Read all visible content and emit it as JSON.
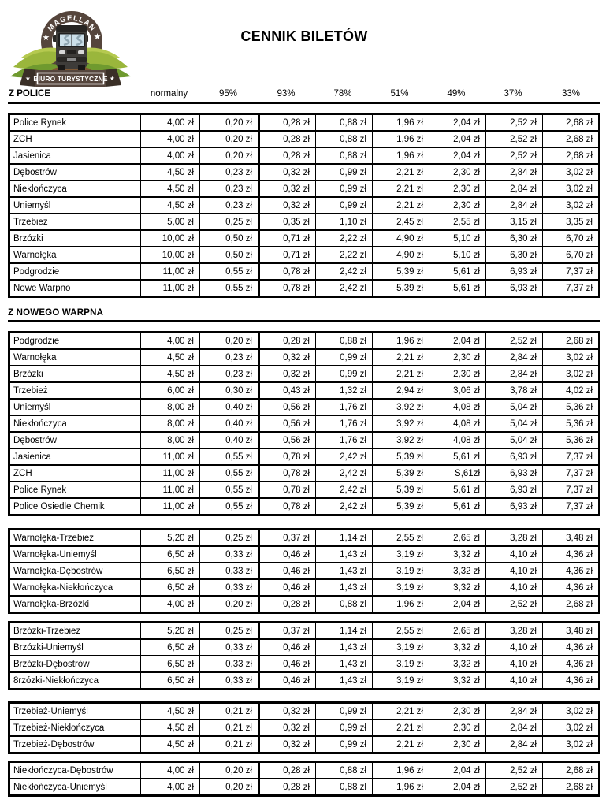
{
  "title": "CENNIK BILETÓW",
  "logo": {
    "brand_arc": "★ MAGELLAN ★",
    "banner": "BIURO TURYSTYCZNE",
    "star": "★",
    "colors": {
      "ring_brown": "#55453c",
      "leaf_light": "#b5c94f",
      "leaf_mid": "#9ab63c",
      "leaf_dark": "#6f9a2f",
      "bus_body": "#3e3c39",
      "window_blue": "#cbdfe9",
      "dirt": "#7d5733"
    }
  },
  "header": {
    "label": "Z POLICE",
    "columns": [
      "normalny",
      "95%",
      "93%",
      "78%",
      "51%",
      "49%",
      "37%",
      "33%"
    ]
  },
  "section2": {
    "label": "Z NOWEGO WARPNA"
  },
  "tables": [
    {
      "name": "z-police",
      "rows": [
        [
          "Police Rynek",
          "4,00 zł",
          "0,20 zł",
          "0,28 zł",
          "0,88 zł",
          "1,96 zł",
          "2,04 zł",
          "2,52 zł",
          "2,68 zł"
        ],
        [
          "ZCH",
          "4,00 zł",
          "0,20 zł",
          "0,28 zł",
          "0,88 zł",
          "1,96 zł",
          "2,04 zł",
          "2,52 zł",
          "2,68 zł"
        ],
        [
          "Jasienica",
          "4,00 zł",
          "0,20 zł",
          "0,28 zł",
          "0,88 zł",
          "1,96 zł",
          "2,04 zł",
          "2,52 zł",
          "2,68 zł"
        ],
        [
          "Dębostrów",
          "4,50 zł",
          "0,23 zł",
          "0,32 zł",
          "0,99 zł",
          "2,21 zł",
          "2,30 zł",
          "2,84 zł",
          "3,02 zł"
        ],
        [
          "Niekłończyca",
          "4,50 zł",
          "0,23 zł",
          "0,32 zł",
          "0,99 zł",
          "2,21 zł",
          "2,30 zł",
          "2,84 zł",
          "3,02 zł"
        ],
        [
          "Uniemyśl",
          "4,50 zł",
          "0,23 zł",
          "0,32 zł",
          "0,99 zł",
          "2,21 zł",
          "2,30 zł",
          "2,84 zł",
          "3,02 zł"
        ],
        [
          "Trzebież",
          "5,00 zł",
          "0,25 zł",
          "0,35 zł",
          "1,10 zł",
          "2,45 zł",
          "2,55 zł",
          "3,15 zł",
          "3,35 zł"
        ],
        [
          "Brzózki",
          "10,00 zł",
          "0,50 zł",
          "0,71 zł",
          "2,22 zł",
          "4,90 zł",
          "5,10 zł",
          "6,30 zł",
          "6,70 zł"
        ],
        [
          "Warnołęka",
          "10,00 zł",
          "0,50 zł",
          "0,71 zł",
          "2,22 zł",
          "4,90 zł",
          "5,10 zł",
          "6,30 zł",
          "6,70 zł"
        ],
        [
          "Podgrodzie",
          "11,00 zł",
          "0,55 zł",
          "0,78 zł",
          "2,42 zł",
          "5,39 zł",
          "5,61 zł",
          "6,93 zł",
          "7,37 zł"
        ],
        [
          "Nowe Warpno",
          "11,00 zł",
          "0,55 zł",
          "0,78 zł",
          "2,42 zł",
          "5,39 zł",
          "5,61 zł",
          "6,93 zł",
          "7,37 zł"
        ]
      ]
    },
    {
      "name": "z-nowego-warpna",
      "rows": [
        [
          "Podgrodzie",
          "4,00 zł",
          "0,20 zł",
          "0,28 zł",
          "0,88 zł",
          "1,96 zł",
          "2,04 zł",
          "2,52 zł",
          "2,68 zł"
        ],
        [
          "Warnołęka",
          "4,50 zł",
          "0,23 zł",
          "0,32 zł",
          "0,99 zł",
          "2,21 zł",
          "2,30 zł",
          "2,84 zł",
          "3,02 zł"
        ],
        [
          "Brzózki",
          "4,50 zł",
          "0,23 zł",
          "0,32 zł",
          "0,99 zł",
          "2,21 zł",
          "2,30 zł",
          "2,84 zł",
          "3,02 zł"
        ],
        [
          "Trzebież",
          "6,00 zł",
          "0,30 zł",
          "0,43 zł",
          "1,32 zł",
          "2,94 zł",
          "3,06 zł",
          "3,78 zł",
          "4,02 zł"
        ],
        [
          "Uniemyśl",
          "8,00 zł",
          "0,40 zł",
          "0,56 zł",
          "1,76 zł",
          "3,92 zł",
          "4,08 zł",
          "5,04 zł",
          "5,36 zł"
        ],
        [
          "Niekłończyca",
          "8,00 zł",
          "0,40 zł",
          "0,56 zł",
          "1,76 zł",
          "3,92 zł",
          "4,08 zł",
          "5,04 zł",
          "5,36 zł"
        ],
        [
          "Dębostrów",
          "8,00 zł",
          "0,40 zł",
          "0,56 zł",
          "1,76 zł",
          "3,92 zł",
          "4,08 zł",
          "5,04 zł",
          "5,36 zł"
        ],
        [
          "Jasienica",
          "11,00 zł",
          "0,55 zł",
          "0,78 zł",
          "2,42 zł",
          "5,39 zł",
          "5,61 zł",
          "6,93 zł",
          "7,37 zł"
        ],
        [
          "ZCH",
          "11,00 zł",
          "0,55 zł",
          "0,78 zł",
          "2,42 zł",
          "5,39 zł",
          "S,61zł",
          "6,93 zł",
          "7,37 zł"
        ],
        [
          "Police Rynek",
          "11,00 zł",
          "0,55 zł",
          "0,78 zł",
          "2,42 zł",
          "5,39 zł",
          "5,61 zł",
          "6,93 zł",
          "7,37 zł"
        ],
        [
          "Police Osiedle Chemik",
          "11,00 zł",
          "0,55 zł",
          "0,78 zł",
          "2,42 zł",
          "5,39 zł",
          "5,61 zł",
          "6,93 zł",
          "7,37 zł"
        ]
      ]
    },
    {
      "name": "warnoleka-routes",
      "rows": [
        [
          "Warnołęka-Trzebież",
          "5,20 zł",
          "0,25 zł",
          "0,37 zł",
          "1,14 zł",
          "2,55 zł",
          "2,65 zł",
          "3,28 zł",
          "3,48 zł"
        ],
        [
          "Warnołęka-Uniemyśl",
          "6,50 zł",
          "0,33 zł",
          "0,46 zł",
          "1,43 zł",
          "3,19 zł",
          "3,32 zł",
          "4,10 zł",
          "4,36 zł"
        ],
        [
          "Warnołęka-Dębostrów",
          "6,50 zł",
          "0,33 zł",
          "0,46 zł",
          "1,43 zł",
          "3,19 zł",
          "3,32 zł",
          "4,10 zł",
          "4,36 zł"
        ],
        [
          "Warnołęka-Niekłończyca",
          "6,50 zł",
          "0,33 zł",
          "0,46 zł",
          "1,43 zł",
          "3,19 zł",
          "3,32 zł",
          "4,10 zł",
          "4,36 zł"
        ],
        [
          "Warnołęka-Brzózki",
          "4,00 zł",
          "0,20 zł",
          "0,28 zł",
          "0,88 zł",
          "1,96 zł",
          "2,04 zł",
          "2,52 zł",
          "2,68 zł"
        ]
      ]
    },
    {
      "name": "brzozki-routes",
      "rows": [
        [
          "Brzózki-Trzebież",
          "5,20 zł",
          "0,25 zł",
          "0,37 zł",
          "1,14 zł",
          "2,55 zł",
          "2,65 zł",
          "3,28 zł",
          "3,48 zł"
        ],
        [
          "Brzózki-Uniemyśl",
          "6,50 zł",
          "0,33 zł",
          "0,46 zł",
          "1,43 zł",
          "3,19 zł",
          "3,32 zł",
          "4,10 zł",
          "4,36 zł"
        ],
        [
          "Brzózki-Dębostrów",
          "6,50 zł",
          "0,33 zł",
          "0,46 zł",
          "1,43 zł",
          "3,19 zł",
          "3,32 zł",
          "4,10 zł",
          "4,36 zł"
        ],
        [
          "8rzózki-Niekłończyca",
          "6,50 zł",
          "0,33 zł",
          "0,46 zł",
          "1,43 zł",
          "3,19 zł",
          "3,32 zł",
          "4,10 zł",
          "4,36 zł"
        ]
      ]
    },
    {
      "name": "trzebiez-routes",
      "rows": [
        [
          "Trzebież-Uniemyśl",
          "4,50 zł",
          "0,21 zł",
          "0,32 zł",
          "0,99 zł",
          "2,21 zł",
          "2,30 zł",
          "2,84 zł",
          "3,02 zł"
        ],
        [
          "Trzebież-Niekłończyca",
          "4,50 zł",
          "0,21 zł",
          "0,32 zł",
          "0,99 zł",
          "2,21 zł",
          "2,30 zł",
          "2,84 zł",
          "3,02 zł"
        ],
        [
          "Trzebież-Dębostrów",
          "4,50 zł",
          "0,21 zł",
          "0,32 zł",
          "0,99 zł",
          "2,21 zł",
          "2,30 zł",
          "2,84 zł",
          "3,02 zł"
        ]
      ]
    },
    {
      "name": "nieklonczyca-routes",
      "rows": [
        [
          "Niekłończyca-Dębostrów",
          "4,00 zł",
          "0,20 zł",
          "0,28 zł",
          "0,88 zł",
          "1,96 zł",
          "2,04 zł",
          "2,52 zł",
          "2,68 zł"
        ],
        [
          "Niekłończyca-Uniemyśl",
          "4,00 zł",
          "0,20 zł",
          "0,28 zł",
          "0,88 zł",
          "1,96 zł",
          "2,04 zł",
          "2,52 zł",
          "2,68 zł"
        ]
      ]
    }
  ]
}
